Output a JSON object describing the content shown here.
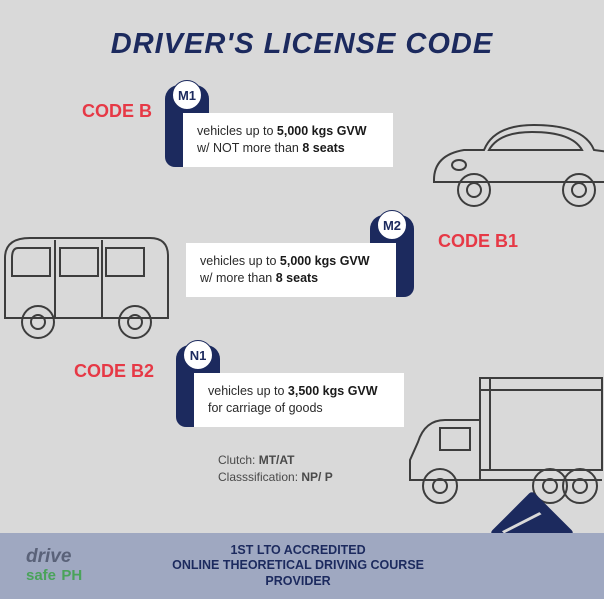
{
  "header": {
    "title": "DRIVER'S LICENSE CODE"
  },
  "codes": {
    "b": {
      "label": "CODE B",
      "badge": "M1",
      "desc_html": "vehicles up to <b>5,000 kgs GVW</b> w/ NOT more than <b>8 seats</b>"
    },
    "b1": {
      "label": "CODE B1",
      "badge": "M2",
      "desc_html": "vehicles up to <b>5,000 kgs GVW</b> w/ more than <b>8 seats</b>"
    },
    "b2": {
      "label": "CODE B2",
      "badge": "N1",
      "desc_html": "vehicles up to <b>3,500 kgs GVW</b> for carriage of goods"
    }
  },
  "meta": {
    "clutch_label": "Clutch:",
    "clutch_value": "MT/AT",
    "class_label": "Classsification:",
    "class_value": "NP/ P"
  },
  "footer": {
    "logo_drive": "drive",
    "logo_safe": "safe",
    "logo_ph": "PH",
    "line1": "1ST LTO ACCREDITED",
    "line2": "ONLINE THEORETICAL DRIVING COURSE",
    "line3": "PROVIDER"
  },
  "colors": {
    "navy": "#1c2a5e",
    "red": "#e63946",
    "bg": "#d9d9d9",
    "footer_bg": "#9fa8c1"
  }
}
